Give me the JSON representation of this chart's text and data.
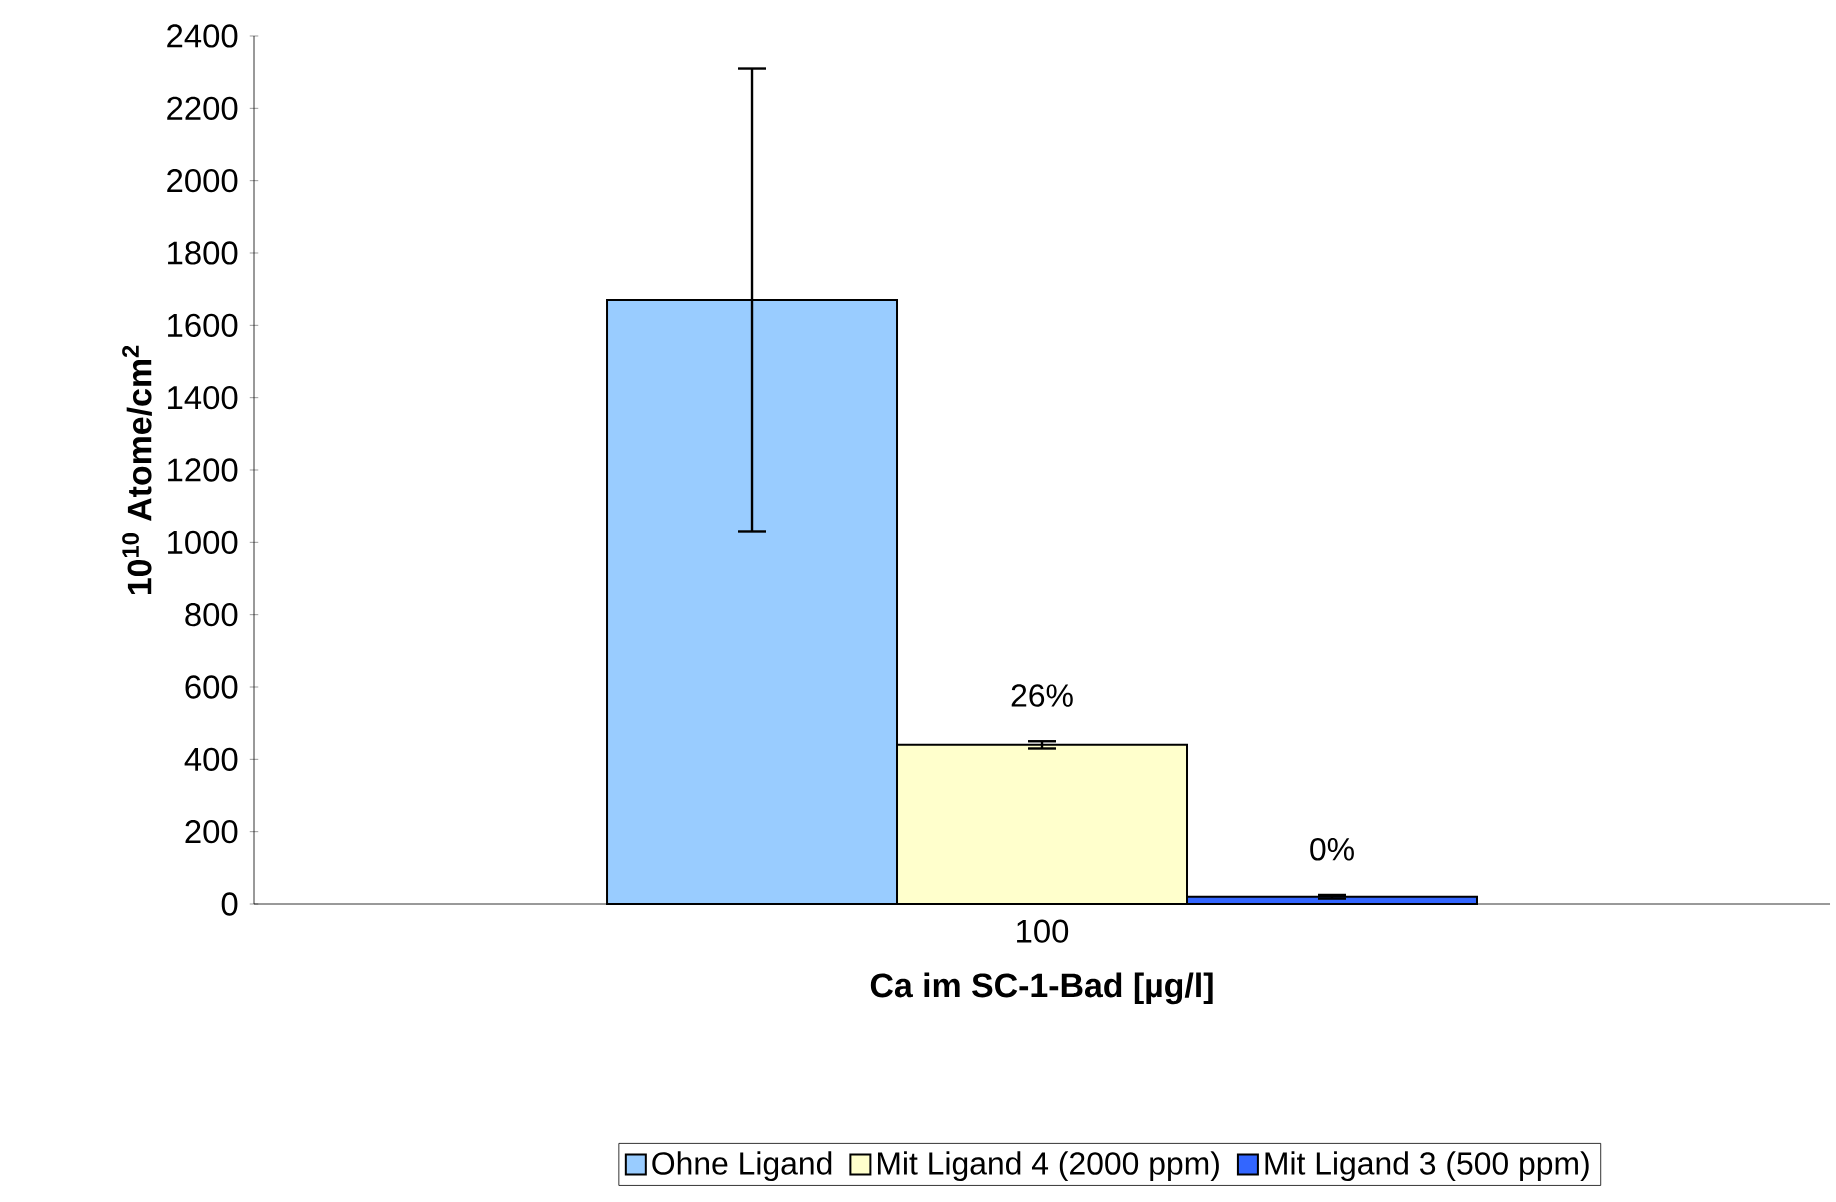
{
  "chart_data": {
    "type": "bar",
    "xlabel": "Ca im SC-1-Bad [µg/l]",
    "ylabel": "10$^{10}$ Atome/cm$^{2}$",
    "categories": [
      "100"
    ],
    "series": [
      {
        "name": "Ohne Ligand",
        "color": "#99ccff",
        "values": [
          1670
        ],
        "errors": [
          640
        ]
      },
      {
        "name": "Mit Ligand 4 (2000 ppm)",
        "color": "#ffffcc",
        "values": [
          440
        ],
        "errors": [
          10
        ]
      },
      {
        "name": "Mit Ligand 3  (500 ppm)",
        "color": "#3366ff",
        "values": [
          20
        ],
        "errors": [
          5
        ]
      }
    ],
    "annotations": [
      "26%",
      "0%"
    ],
    "ylim": [
      0,
      2400
    ],
    "yticks": [
      0,
      200,
      400,
      600,
      800,
      1000,
      1200,
      1400,
      1600,
      1800,
      2000,
      2200,
      2400
    ],
    "legend": "bottom"
  }
}
